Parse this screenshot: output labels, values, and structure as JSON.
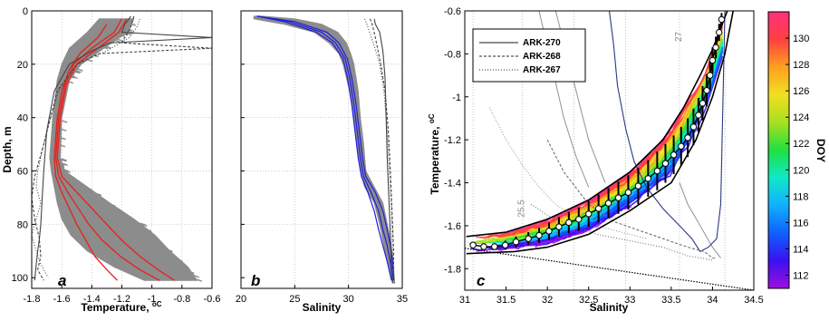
{
  "chart_data": [
    {
      "type": "line",
      "panel_label": "a",
      "xlabel": "Temperature, ",
      "xlabel_unit": "oC",
      "ylabel": "Depth, m",
      "xlim": [
        -1.8,
        -0.6
      ],
      "ylim": [
        0,
        104
      ],
      "xticks": [
        -1.8,
        -1.6,
        -1.4,
        -1.2,
        -1,
        -0.8,
        -0.6
      ],
      "xtick_labels": [
        "-1.8",
        "-1.6",
        "-1.4",
        "-1.2",
        "-1",
        "-0.8",
        "-0.6"
      ],
      "yticks": [
        0,
        20,
        40,
        60,
        80,
        100
      ],
      "ytick_labels": [
        "0",
        "20",
        "40",
        "60",
        "80",
        "100"
      ],
      "y_inverted": true,
      "grid": true,
      "colors": {
        "cloud": "#8c8c8c",
        "profiles": "#e8201a",
        "reference": "#3c3c3c"
      },
      "cloud_band": {
        "depth": [
          3,
          8,
          14,
          20,
          26,
          40,
          55,
          60,
          66,
          72,
          78,
          84,
          90,
          96,
          101
        ],
        "t_left": [
          -1.35,
          -1.43,
          -1.55,
          -1.6,
          -1.63,
          -1.66,
          -1.68,
          -1.67,
          -1.65,
          -1.63,
          -1.6,
          -1.54,
          -1.43,
          -1.25,
          -1.05
        ],
        "t_right": [
          -1.12,
          -1.16,
          -1.32,
          -1.47,
          -1.55,
          -1.6,
          -1.61,
          -1.58,
          -1.43,
          -1.28,
          -1.12,
          -0.98,
          -0.88,
          -0.76,
          -0.7
        ]
      },
      "series": [
        {
          "style": "solid",
          "color": "#e8201a",
          "depth": [
            3,
            8,
            14,
            20,
            28,
            40,
            55,
            62,
            68,
            74,
            80,
            86,
            92,
            97,
            101
          ],
          "values": [
            -1.2,
            -1.25,
            -1.4,
            -1.52,
            -1.58,
            -1.62,
            -1.64,
            -1.62,
            -1.56,
            -1.49,
            -1.42,
            -1.33,
            -1.21,
            -1.08,
            -0.95
          ]
        },
        {
          "style": "solid",
          "color": "#e8201a",
          "depth": [
            3,
            8,
            14,
            20,
            28,
            40,
            55,
            62,
            68,
            74,
            80,
            86,
            92,
            97,
            101
          ],
          "values": [
            -1.17,
            -1.22,
            -1.36,
            -1.5,
            -1.57,
            -1.61,
            -1.63,
            -1.6,
            -1.5,
            -1.4,
            -1.3,
            -1.2,
            -1.08,
            -0.96,
            -0.85
          ]
        },
        {
          "style": "solid",
          "color": "#e8201a",
          "depth": [
            5,
            10,
            16,
            22,
            30,
            40,
            55,
            62,
            68,
            74,
            80,
            86,
            92,
            97,
            101
          ],
          "values": [
            -1.3,
            -1.36,
            -1.48,
            -1.55,
            -1.6,
            -1.63,
            -1.65,
            -1.64,
            -1.6,
            -1.55,
            -1.5,
            -1.44,
            -1.38,
            -1.3,
            -1.23
          ]
        },
        {
          "style": "solid",
          "color": "#444444",
          "depth": [
            2,
            5,
            8,
            10,
            12,
            15,
            20,
            30,
            45,
            60,
            70,
            80,
            86,
            90,
            95,
            101
          ],
          "values": [
            -1.14,
            -1.18,
            -1.2,
            -0.6,
            -1.28,
            -1.4,
            -1.55,
            -1.65,
            -1.7,
            -1.72,
            -1.73,
            -1.74,
            -1.75,
            -1.76,
            -1.77,
            -1.78
          ]
        },
        {
          "style": "dashed",
          "color": "#444444",
          "depth": [
            2,
            6,
            12,
            14,
            16,
            20,
            30,
            50,
            62,
            70,
            78,
            85,
            92,
            97,
            101
          ],
          "values": [
            -1.12,
            -1.14,
            -1.2,
            -0.6,
            -1.35,
            -1.5,
            -1.63,
            -1.72,
            -1.78,
            -1.8,
            -1.78,
            -1.75,
            -1.74,
            -1.76,
            -1.72
          ]
        },
        {
          "style": "dotted",
          "color": "#444444",
          "depth": [
            3,
            6,
            10,
            15,
            20,
            30,
            45,
            60,
            66,
            72,
            78,
            84,
            90,
            95,
            100
          ],
          "values": [
            -1.08,
            -1.1,
            -1.15,
            -1.3,
            -1.5,
            -1.62,
            -1.7,
            -1.76,
            -1.77,
            -1.74,
            -1.77,
            -1.8,
            -1.77,
            -1.74,
            -1.69
          ]
        }
      ]
    },
    {
      "type": "line",
      "panel_label": "b",
      "xlabel": "Salinity",
      "xlim": [
        20,
        35
      ],
      "ylim": [
        0,
        104
      ],
      "xticks": [
        20,
        25,
        30,
        35
      ],
      "xtick_labels": [
        "20",
        "25",
        "30",
        "35"
      ],
      "y_inverted": true,
      "grid": true,
      "colors": {
        "cloud": "#8c8c8c",
        "profiles": "#1f1fe0",
        "reference": "#3c3c3c"
      },
      "cloud_band": {
        "depth": [
          2,
          3,
          5,
          8,
          12,
          16,
          20,
          30,
          40,
          50,
          60,
          66,
          72,
          80,
          86,
          92,
          97,
          102
        ],
        "s_left": [
          21.2,
          21.2,
          24.0,
          26.8,
          28.2,
          29.1,
          29.5,
          30.1,
          30.5,
          30.8,
          31.1,
          31.5,
          32.4,
          32.9,
          33.2,
          33.5,
          33.8,
          34.1
        ],
        "s_right": [
          22.0,
          25.0,
          27.5,
          29.0,
          29.8,
          30.2,
          30.5,
          30.9,
          31.1,
          31.4,
          31.6,
          32.4,
          33.2,
          33.6,
          33.9,
          34.1,
          34.2,
          34.3
        ]
      },
      "series": [
        {
          "style": "solid",
          "color": "#1f1fe0",
          "depth": [
            2,
            4,
            8,
            12,
            18,
            25,
            35,
            45,
            55,
            62,
            68,
            75,
            82,
            88,
            94,
            101
          ],
          "values": [
            21.5,
            24.5,
            27.5,
            28.8,
            29.7,
            30.1,
            30.5,
            30.8,
            31.1,
            31.4,
            32.1,
            32.8,
            33.2,
            33.6,
            33.9,
            34.1
          ]
        },
        {
          "style": "solid",
          "color": "#1f1fe0",
          "depth": [
            2,
            4,
            8,
            12,
            18,
            25,
            35,
            45,
            55,
            62,
            68,
            75,
            82,
            88,
            94,
            101
          ],
          "values": [
            21.5,
            25.0,
            28.0,
            29.1,
            29.9,
            30.3,
            30.7,
            31.0,
            31.3,
            31.6,
            32.5,
            33.2,
            33.6,
            33.9,
            34.1,
            34.2
          ]
        },
        {
          "style": "solid",
          "color": "#1f1fe0",
          "depth": [
            2,
            4,
            8,
            12,
            18,
            25,
            35,
            45,
            55,
            62,
            68,
            75,
            82,
            88,
            94,
            101
          ],
          "values": [
            21.5,
            24.0,
            27.0,
            28.5,
            29.5,
            29.9,
            30.3,
            30.6,
            30.9,
            31.2,
            31.8,
            32.4,
            32.8,
            33.2,
            33.6,
            34.0
          ]
        },
        {
          "style": "solid",
          "color": "#444444",
          "depth": [
            3,
            5,
            8,
            15,
            25,
            40,
            55,
            65,
            75,
            85,
            95,
            102
          ],
          "values": [
            32.4,
            32.5,
            32.9,
            33.2,
            33.4,
            33.5,
            33.6,
            33.7,
            33.8,
            33.9,
            34.0,
            34.1
          ]
        },
        {
          "style": "dashed",
          "color": "#444444",
          "depth": [
            3,
            5,
            10,
            20,
            30,
            45,
            60,
            70,
            80,
            90,
            100
          ],
          "values": [
            32.0,
            32.2,
            32.5,
            33.0,
            33.4,
            33.7,
            33.9,
            34.0,
            34.1,
            34.2,
            34.2
          ]
        },
        {
          "style": "dotted",
          "color": "#444444",
          "depth": [
            3,
            6,
            12,
            20,
            30,
            45,
            60,
            75,
            90,
            100
          ],
          "values": [
            31.5,
            31.8,
            32.3,
            32.9,
            33.3,
            33.6,
            33.8,
            34.0,
            34.1,
            34.2
          ]
        }
      ]
    },
    {
      "type": "scatter",
      "panel_label": "c",
      "xlabel": "Salinity",
      "ylabel": "Temperature, ",
      "ylabel_unit": "oC",
      "xlim": [
        31,
        34.5
      ],
      "ylim": [
        -1.9,
        -0.6
      ],
      "xticks": [
        31,
        31.5,
        32,
        32.5,
        33,
        33.5,
        34,
        34.5
      ],
      "xtick_labels": [
        "31",
        "31.5",
        "32",
        "32.5",
        "33",
        "33.5",
        "34",
        "34.5"
      ],
      "yticks": [
        -1.8,
        -1.6,
        -1.4,
        -1.2,
        -1,
        -0.8,
        -0.6
      ],
      "ytick_labels": [
        "-1.8",
        "-1.6",
        "-1.4",
        "-1.2",
        "-1",
        "-0.8",
        "-0.6"
      ],
      "legend": {
        "placement": "top-left",
        "entries": [
          {
            "label": "ARK-270",
            "style": "solid"
          },
          {
            "label": "ARK-268",
            "style": "dashed"
          },
          {
            "label": "ARK-267",
            "style": "dotted"
          }
        ]
      },
      "colorbar": {
        "label": "DOY",
        "range": [
          111,
          132
        ],
        "ticks": [
          112,
          114,
          116,
          118,
          120,
          122,
          124,
          126,
          128,
          130
        ],
        "tick_labels": [
          "112",
          "114",
          "116",
          "118",
          "120",
          "122",
          "124",
          "126",
          "128",
          "130"
        ],
        "colormap": [
          "#9b10e0",
          "#3a10f0",
          "#1060ff",
          "#10b0ff",
          "#10e8c8",
          "#20e040",
          "#a8e020",
          "#f0e020",
          "#ffa020",
          "#ff4040",
          "#ff3080"
        ]
      },
      "isopycnal_labels": [
        {
          "text": "25.5",
          "x": 31.72,
          "y": -1.52
        },
        {
          "text": "27",
          "x": 33.62,
          "y": -0.72
        }
      ],
      "isopycnal_x": [
        31.1,
        31.7,
        32.32,
        32.95,
        33.6,
        34.15
      ],
      "freezing_line": {
        "x": [
          31,
          34.5
        ],
        "y": [
          -1.705,
          -1.9
        ]
      },
      "envelope": {
        "upper": {
          "x": [
            31.02,
            31.5,
            32.0,
            32.5,
            33.0,
            33.4,
            33.65,
            33.85,
            34.0,
            34.1,
            34.18
          ],
          "y": [
            -1.65,
            -1.63,
            -1.57,
            -1.48,
            -1.35,
            -1.2,
            -1.05,
            -0.9,
            -0.78,
            -0.68,
            -0.6
          ]
        },
        "lower": {
          "x": [
            31.02,
            31.6,
            32.0,
            32.5,
            33.0,
            33.5,
            33.8,
            34.0,
            34.15,
            34.25
          ],
          "y": [
            -1.73,
            -1.72,
            -1.7,
            -1.64,
            -1.53,
            -1.4,
            -1.2,
            -1.0,
            -0.8,
            -0.6
          ]
        }
      },
      "mean_profile": {
        "x": [
          31.1,
          31.23,
          31.36,
          31.49,
          31.62,
          31.77,
          31.9,
          32.02,
          32.14,
          32.26,
          32.38,
          32.5,
          32.62,
          32.74,
          32.86,
          32.98,
          33.1,
          33.22,
          33.33,
          33.43,
          33.53,
          33.62,
          33.7,
          33.77,
          33.83,
          33.88,
          33.93,
          33.97,
          34.0,
          34.04,
          34.08,
          34.11
        ],
        "y": [
          -1.69,
          -1.697,
          -1.697,
          -1.69,
          -1.675,
          -1.66,
          -1.645,
          -1.625,
          -1.605,
          -1.585,
          -1.57,
          -1.545,
          -1.52,
          -1.495,
          -1.47,
          -1.445,
          -1.415,
          -1.38,
          -1.345,
          -1.31,
          -1.27,
          -1.23,
          -1.19,
          -1.14,
          -1.085,
          -1.03,
          -0.97,
          -0.9,
          -0.83,
          -0.77,
          -0.7,
          -0.64
        ],
        "err": [
          0.01,
          0.015,
          0.015,
          0.02,
          0.025,
          0.03,
          0.035,
          0.04,
          0.045,
          0.05,
          0.055,
          0.06,
          0.065,
          0.07,
          0.075,
          0.08,
          0.085,
          0.085,
          0.09,
          0.09,
          0.09,
          0.09,
          0.09,
          0.085,
          0.08,
          0.08,
          0.075,
          0.07,
          0.06,
          0.05,
          0.04,
          0.03
        ]
      },
      "cloud": {
        "x_range": [
          31.05,
          34.15
        ],
        "doy_range": [
          111,
          132
        ]
      },
      "reference_series": [
        {
          "label": "ARK-270",
          "style": "solid",
          "x": [
            32.75,
            32.8,
            32.85,
            32.95,
            33.05,
            33.2,
            33.4,
            33.6,
            33.75,
            33.85,
            33.95,
            34.05,
            34.1,
            34.15
          ],
          "y": [
            -0.6,
            -0.75,
            -0.95,
            -1.15,
            -1.3,
            -1.42,
            -1.52,
            -1.6,
            -1.66,
            -1.72,
            -1.7,
            -1.66,
            -1.5,
            -0.6
          ]
        },
        {
          "label": "ARK-268",
          "style": "dashed",
          "x": [
            32.0,
            32.2,
            32.5,
            32.8,
            33.1,
            33.4,
            33.7,
            33.9,
            34.0,
            34.05
          ],
          "y": [
            -1.2,
            -1.35,
            -1.5,
            -1.58,
            -1.62,
            -1.66,
            -1.7,
            -1.72,
            -1.75,
            -1.75
          ]
        },
        {
          "label": "ARK-267",
          "style": "dotted",
          "x": [
            31.8,
            32.0,
            32.3,
            32.6,
            33.0,
            33.4,
            33.7,
            34.0
          ],
          "y": [
            -1.5,
            -1.55,
            -1.6,
            -1.64,
            -1.67,
            -1.7,
            -1.74,
            -1.76
          ]
        }
      ],
      "gray_profiles": [
        {
          "x": [
            31.9,
            32.05,
            32.2,
            32.35,
            32.5
          ],
          "y": [
            -0.6,
            -0.85,
            -1.1,
            -1.28,
            -1.42
          ]
        },
        {
          "x": [
            32.1,
            32.3,
            32.5,
            32.7
          ],
          "y": [
            -0.6,
            -0.9,
            -1.2,
            -1.4
          ]
        },
        {
          "x": [
            31.3,
            31.5,
            31.7,
            31.9,
            32.1,
            32.4,
            32.8,
            33.2
          ],
          "y": [
            -1.05,
            -1.2,
            -1.32,
            -1.42,
            -1.5,
            -1.58,
            -1.62,
            -1.66
          ]
        }
      ],
      "isopycnal_gray": {
        "x": [
          33.6,
          33.7,
          33.85,
          34.0,
          34.1
        ],
        "y": [
          -1.4,
          -1.5,
          -1.6,
          -1.7,
          -1.75
        ]
      }
    }
  ]
}
